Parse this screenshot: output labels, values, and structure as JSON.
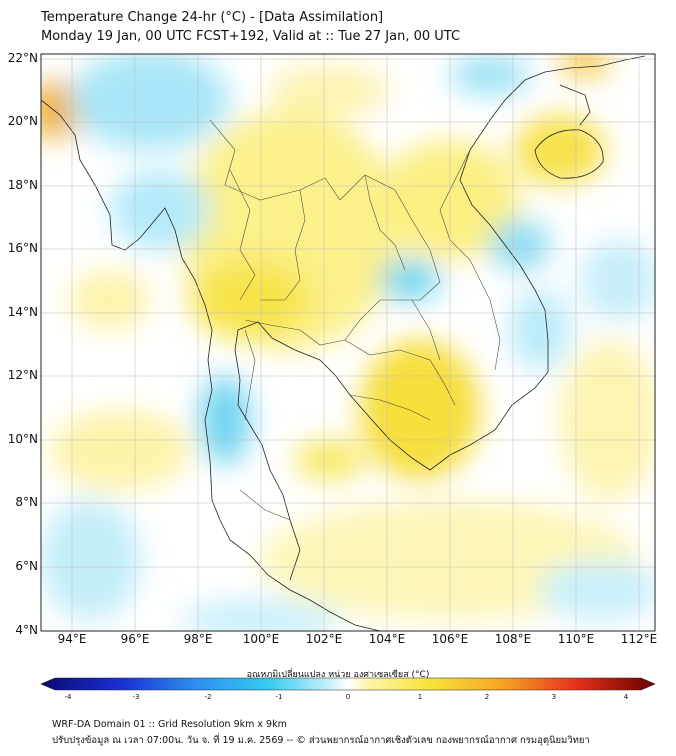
{
  "title": {
    "line1": "Temperature Change 24-hr (°C) - [Data Assimilation]",
    "line2": "Monday 19 Jan, 00 UTC FCST+192, Valid at :: Tue 27 Jan, 00 UTC"
  },
  "map": {
    "lon_range": [
      93,
      112.5
    ],
    "lat_range": [
      4,
      22.2
    ],
    "lat_ticks": [
      "4°N",
      "6°N",
      "8°N",
      "10°N",
      "12°N",
      "14°N",
      "16°N",
      "18°N",
      "20°N",
      "22°N"
    ],
    "lon_ticks": [
      "94°E",
      "96°E",
      "98°E",
      "100°E",
      "102°E",
      "104°E",
      "106°E",
      "108°E",
      "110°E",
      "112°E"
    ],
    "colors": {
      "cold": "#33ccee",
      "warm": "#f5e23a",
      "land_border": "#222222",
      "grid": "#bbbbbb"
    }
  },
  "colorbar": {
    "title": "อุณหภูมิเปลี่ยนแปลง หน่วย องศาเซลเซียส (°C)",
    "min": -4,
    "max": 4,
    "tick_labels": [
      "-4",
      "-3",
      "-2",
      "-1",
      "0",
      "1",
      "2",
      "3",
      "4"
    ]
  },
  "footer": {
    "line1": "WRF-DA Domain 01 :: Grid Resolution 9km x 9km",
    "line2": "ปรับปรุงข้อมูล ณ เวลา 07:00น. วัน จ. ที่ 19 ม.ค. 2569 -- © ส่วนพยากรณ์อากาศเชิงตัวเลข กองพยากรณ์อากาศ กรมอุตุนิยมวิทยา"
  }
}
